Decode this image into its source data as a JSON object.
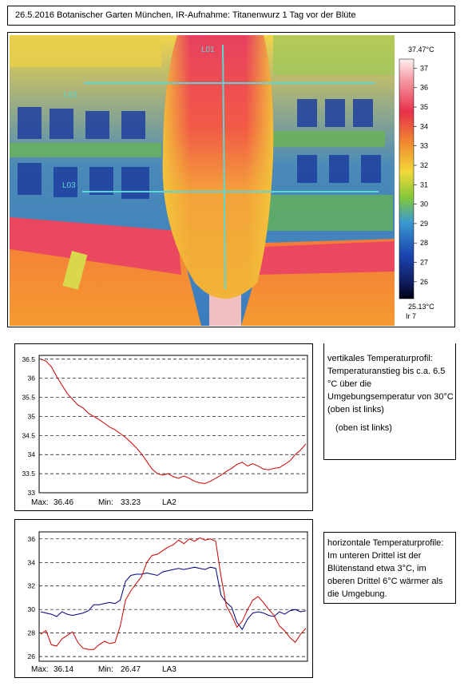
{
  "title": "26.5.2016 Botanischer Garten München, IR-Aufnahme: Titanenwurz 1 Tag  vor der Blüte",
  "ir_image": {
    "line_labels": [
      "L01",
      "L02",
      "L03"
    ],
    "colorbar": {
      "max_label": "37.47°C",
      "min_label": "25.13°C",
      "palette_label": "Ir 7",
      "ticks": [
        "37",
        "36",
        "35",
        "34",
        "33",
        "32",
        "31",
        "30",
        "29",
        "28",
        "27",
        "26"
      ]
    }
  },
  "notes": {
    "vertical": "vertikales Temperaturprofil: Temperaturanstieg bis c.a. 6.5 °C über die Umgebungsemperatur von 30°C (oben ist links)",
    "vertical_extra": "(oben ist links)",
    "horizontal": "horizontale Temperaturprofile: Im unteren Drittel ist der Blütenstand etwa 3°C, im oberen Drittel 6°C wärmer als die Umgebung."
  },
  "chart_data": [
    {
      "type": "line",
      "title": "",
      "xlabel": "",
      "ylabel": "",
      "ylim": [
        33,
        36.6
      ],
      "y_ticks": [
        "36.5",
        "36",
        "35.5",
        "35",
        "34.5",
        "34",
        "33.5",
        "33"
      ],
      "grid": true,
      "series": [
        {
          "color": "#cc0000",
          "x": [
            0,
            2,
            4,
            6,
            8,
            10,
            12,
            14,
            16,
            18,
            20,
            22,
            24,
            26,
            28,
            30,
            32,
            34,
            36,
            38,
            40,
            42,
            44,
            46,
            48,
            50,
            52,
            54,
            56,
            58,
            60,
            62,
            64,
            66,
            68,
            70,
            72,
            74,
            76,
            78,
            80,
            82,
            84,
            86,
            88,
            90,
            92,
            94,
            96,
            98,
            100
          ],
          "values": [
            36.5,
            36.45,
            36.3,
            36.05,
            35.82,
            35.6,
            35.45,
            35.3,
            35.22,
            35.08,
            35.0,
            34.92,
            34.82,
            34.72,
            34.65,
            34.55,
            34.45,
            34.32,
            34.18,
            34.02,
            33.82,
            33.62,
            33.5,
            33.46,
            33.5,
            33.42,
            33.38,
            33.44,
            33.38,
            33.3,
            33.26,
            33.24,
            33.3,
            33.38,
            33.46,
            33.56,
            33.64,
            33.74,
            33.8,
            33.7,
            33.76,
            33.7,
            33.62,
            33.6,
            33.64,
            33.66,
            33.74,
            33.84,
            34.0,
            34.12,
            34.28
          ]
        }
      ],
      "footer": {
        "max_label": "Max:",
        "max": "36.46",
        "min_label": "Min:",
        "min": "33.23",
        "name": "LA2"
      }
    },
    {
      "type": "line",
      "title": "",
      "xlabel": "",
      "ylabel": "",
      "ylim": [
        25.6,
        36.6
      ],
      "y_ticks": [
        "36",
        "34",
        "32",
        "30",
        "28",
        "26"
      ],
      "grid": true,
      "series": [
        {
          "color": "#00007f",
          "x": [
            0,
            2,
            4,
            6,
            8,
            10,
            12,
            14,
            16,
            18,
            20,
            22,
            24,
            26,
            28,
            30,
            32,
            34,
            36,
            38,
            40,
            42,
            44,
            46,
            48,
            50,
            52,
            54,
            56,
            58,
            60,
            62,
            64,
            66,
            68,
            70,
            72,
            74,
            76,
            78,
            80,
            82,
            84,
            86,
            88,
            90,
            92,
            94,
            96,
            98,
            100
          ],
          "values": [
            29.8,
            29.7,
            29.6,
            29.4,
            29.8,
            29.6,
            29.5,
            29.6,
            29.7,
            29.9,
            30.4,
            30.4,
            30.5,
            30.6,
            30.5,
            30.8,
            32.4,
            32.9,
            33.0,
            33.0,
            33.1,
            33.0,
            32.9,
            33.2,
            33.3,
            33.4,
            33.5,
            33.4,
            33.5,
            33.6,
            33.5,
            33.4,
            33.6,
            33.5,
            31.2,
            30.6,
            30.2,
            28.9,
            28.3,
            29.2,
            29.7,
            29.8,
            29.7,
            29.5,
            29.4,
            29.8,
            29.6,
            29.9,
            30.0,
            29.8,
            29.9
          ]
        },
        {
          "color": "#cc0000",
          "x": [
            0,
            2,
            4,
            6,
            8,
            10,
            12,
            14,
            16,
            18,
            20,
            22,
            24,
            26,
            28,
            30,
            32,
            34,
            36,
            38,
            40,
            42,
            44,
            46,
            48,
            50,
            52,
            54,
            56,
            58,
            60,
            62,
            64,
            66,
            68,
            70,
            72,
            74,
            76,
            78,
            80,
            82,
            84,
            86,
            88,
            90,
            92,
            94,
            96,
            98,
            100
          ],
          "values": [
            27.9,
            28.2,
            27.0,
            26.9,
            27.5,
            27.8,
            28.1,
            27.2,
            26.7,
            26.6,
            26.6,
            27.0,
            27.3,
            27.1,
            27.2,
            28.6,
            30.8,
            31.6,
            32.2,
            32.8,
            34.0,
            34.6,
            34.7,
            35.0,
            35.3,
            35.5,
            35.9,
            35.6,
            36.0,
            35.8,
            36.1,
            35.9,
            36.0,
            35.8,
            32.8,
            30.3,
            29.5,
            28.5,
            29.0,
            30.0,
            30.8,
            31.1,
            30.6,
            30.0,
            29.5,
            28.6,
            28.2,
            27.6,
            27.2,
            27.9,
            28.4
          ]
        }
      ],
      "footer": {
        "max_label": "Max:",
        "max": "36.14",
        "min_label": "Min:",
        "min": "26.47",
        "name": "LA3"
      }
    }
  ]
}
